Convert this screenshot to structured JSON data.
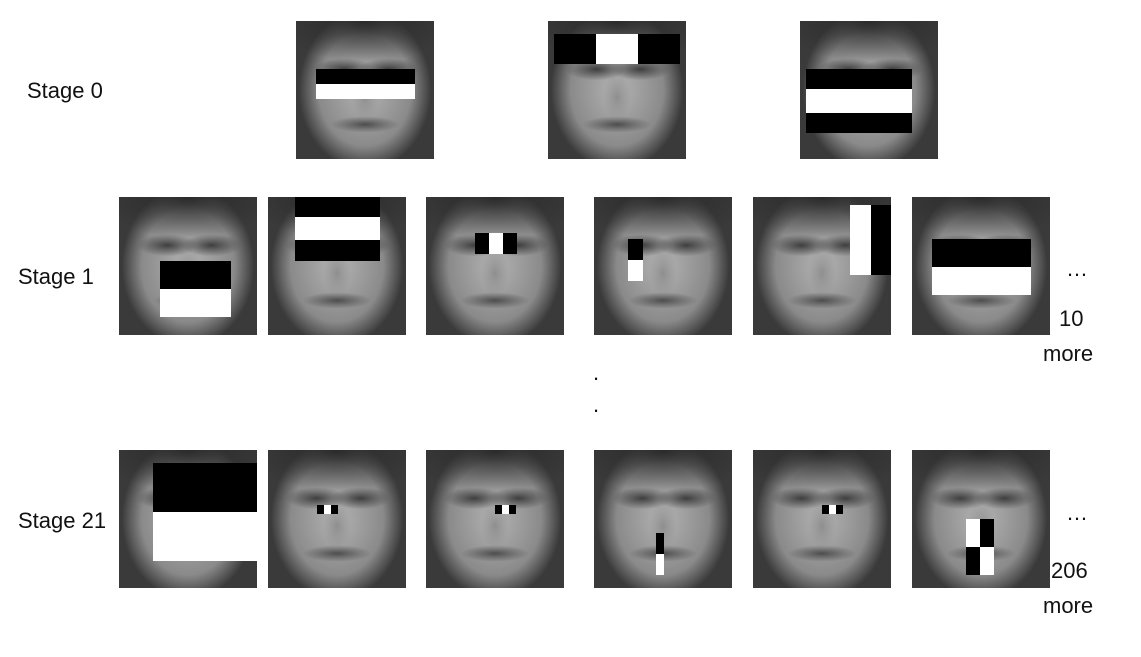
{
  "rows": [
    {
      "label": "Stage 0"
    },
    {
      "label": "Stage 1",
      "ellipsis": "…",
      "more_count": "10",
      "more_word": "more"
    },
    {
      "label": "Stage 21",
      "ellipsis": "…",
      "more_count": "206",
      "more_word": "more"
    }
  ],
  "separator": {
    "dot1": ".",
    "dot2": "."
  },
  "colors": {
    "feature_dark": "#000000",
    "feature_light": "#ffffff"
  }
}
